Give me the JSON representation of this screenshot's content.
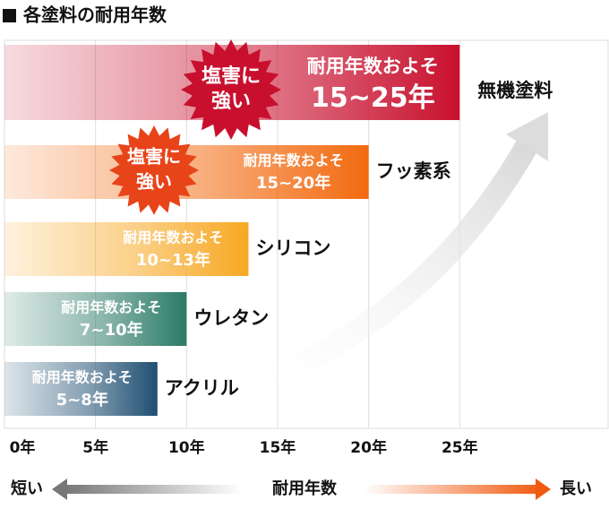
{
  "chart_data": {
    "type": "bar",
    "orientation": "horizontal",
    "title": "各塗料の耐用年数",
    "categories": [
      "無機塗料",
      "フッ素系",
      "シリコン",
      "ウレタン",
      "アクリル"
    ],
    "values": [
      25,
      20,
      13.4,
      10,
      8.4
    ],
    "colors": [
      "#c8102e",
      "#f26a10",
      "#f7a823",
      "#2b7a66",
      "#1f4f72"
    ],
    "bar_note": "耐用年数およそ",
    "ranges": [
      "15~25年",
      "15~20年",
      "10~13年",
      "7~10年",
      "5~8年"
    ],
    "badges": [
      [
        "塩害に",
        "強い"
      ],
      [
        "塩害に",
        "強い"
      ],
      null,
      null,
      null
    ],
    "badge_colors": [
      "#c8102e",
      "#e8441a"
    ],
    "xlim": [
      0,
      33.2
    ],
    "xticks": [
      {
        "value": 0,
        "label": "0年"
      },
      {
        "value": 5,
        "label": "5年"
      },
      {
        "value": 10,
        "label": "10年"
      },
      {
        "value": 15,
        "label": "15年"
      },
      {
        "value": 20,
        "label": "20年"
      },
      {
        "value": 25,
        "label": "25年"
      }
    ],
    "grid": true,
    "axis_caption": {
      "left": "短い",
      "center": "耐用年数",
      "right": "長い"
    }
  }
}
